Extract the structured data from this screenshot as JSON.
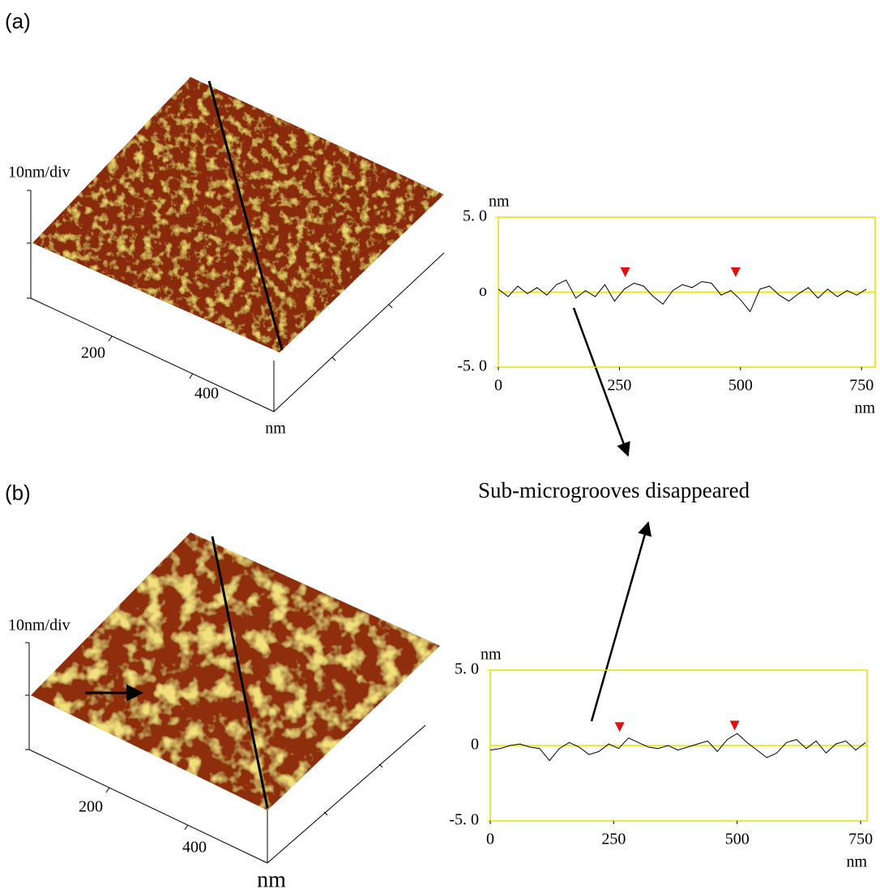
{
  "figure": {
    "panels": [
      {
        "label": "(a)",
        "scale": "10nm/div",
        "afm_ticks": [
          200,
          400
        ],
        "afm_unit": "nm"
      },
      {
        "label": "(b)",
        "scale": "10nm/div",
        "afm_ticks": [
          200,
          400
        ],
        "afm_unit": "nm"
      }
    ],
    "annotation": "Sub-microgrooves disappeared"
  },
  "chart_data": [
    {
      "type": "line",
      "x_label": "nm",
      "y_label": "nm",
      "frame_color": "#e6e000",
      "xlim": [
        0,
        778
      ],
      "ylim": [
        -5,
        5
      ],
      "xticks": [
        0,
        250,
        500,
        750
      ],
      "yticks": [
        {
          "value": 5,
          "label": "5. 0"
        },
        {
          "value": 0,
          "label": "o"
        },
        {
          "value": -5,
          "label": "-5. 0"
        }
      ],
      "x": [
        0,
        20,
        40,
        60,
        80,
        100,
        120,
        140,
        160,
        180,
        200,
        220,
        240,
        260,
        280,
        300,
        320,
        340,
        360,
        380,
        400,
        420,
        440,
        460,
        480,
        500,
        520,
        540,
        560,
        580,
        600,
        620,
        640,
        660,
        680,
        700,
        720,
        740,
        760
      ],
      "series": [
        {
          "color": "#000000",
          "values": [
            0.2,
            -0.3,
            0.4,
            -0.1,
            0.3,
            -0.2,
            0.5,
            0.8,
            -0.4,
            0.1,
            -0.3,
            0.5,
            -0.6,
            0.2,
            0.6,
            0.4,
            -0.3,
            -0.8,
            0.1,
            0.5,
            0.3,
            0.7,
            0.6,
            -0.2,
            0.1,
            -0.5,
            -1.3,
            0.2,
            0.4,
            -0.2,
            -0.6,
            -0.1,
            0.3,
            -0.4,
            0.2,
            -0.3,
            0.1,
            -0.2,
            0.2
          ]
        }
      ],
      "markers": {
        "x": [
          262,
          490
        ],
        "y": [
          1.0,
          1.0
        ],
        "color": "#e01010"
      }
    },
    {
      "type": "line",
      "x_label": "nm",
      "y_label": "nm",
      "frame_color": "#e6e000",
      "xlim": [
        0,
        763
      ],
      "ylim": [
        -5,
        5
      ],
      "xticks": [
        0,
        250,
        500,
        750
      ],
      "yticks": [
        {
          "value": 5,
          "label": "5. 0"
        },
        0,
        {
          "value": -5,
          "label": "-5. 0"
        }
      ],
      "x": [
        0,
        20,
        40,
        60,
        80,
        100,
        120,
        140,
        160,
        180,
        200,
        220,
        240,
        260,
        280,
        300,
        320,
        340,
        360,
        380,
        400,
        420,
        440,
        460,
        480,
        500,
        520,
        540,
        560,
        580,
        600,
        620,
        640,
        660,
        680,
        700,
        720,
        740,
        760
      ],
      "series": [
        {
          "color": "#000000",
          "values": [
            -0.3,
            -0.2,
            0.0,
            0.1,
            -0.1,
            -0.2,
            -1.0,
            -0.2,
            0.2,
            -0.1,
            -0.6,
            -0.4,
            0.1,
            -0.2,
            0.5,
            0.2,
            -0.1,
            -0.2,
            0.0,
            -0.3,
            -0.1,
            0.1,
            0.3,
            -0.4,
            0.4,
            0.8,
            0.2,
            -0.3,
            -0.8,
            -0.5,
            0.2,
            0.4,
            -0.2,
            0.3,
            -0.5,
            0.1,
            0.3,
            -0.3,
            0.2
          ]
        }
      ],
      "markers": {
        "x": [
          262,
          495
        ],
        "y": [
          0.9,
          1.0
        ],
        "color": "#e01010"
      }
    }
  ]
}
